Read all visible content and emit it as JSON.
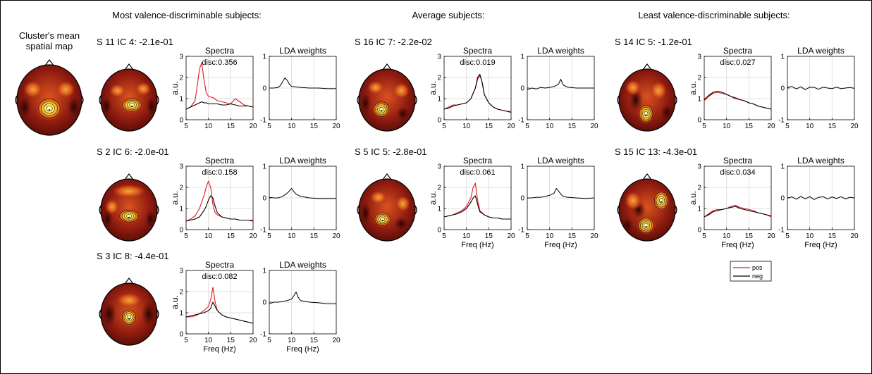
{
  "colors": {
    "pos": "#e8151c",
    "neg": "#000000",
    "grid": "#d9d9d9",
    "border": "#000000",
    "head_outline": "#000000"
  },
  "groups": [
    {
      "title": "Most valence-discriminable subjects:"
    },
    {
      "title": "Average subjects:"
    },
    {
      "title": "Least valence-discriminable subjects:"
    }
  ],
  "cluster": {
    "title_line1": "Cluster's mean",
    "title_line2": "spatial map"
  },
  "labels": {
    "spectra_title": "Spectra",
    "lda_title": "LDA weights",
    "spectra_ylabel": "a.u.",
    "xlabel": "Freq (Hz)",
    "spectra_yticks": [
      "0",
      "1",
      "2",
      "3"
    ],
    "lda_yticks": [
      "-1",
      "0",
      "1"
    ],
    "xticks": [
      "5",
      "10",
      "15",
      "20"
    ]
  },
  "legend": {
    "pos": "pos",
    "neg": "neg"
  },
  "panels": [
    {
      "id": "g0r0",
      "label": "S 11 IC 4: -2.1e-01",
      "disc": "disc:0.356",
      "map": "m1",
      "showXlabel": false
    },
    {
      "id": "g0r1",
      "label": "S 2 IC 6: -2.0e-01",
      "disc": "disc:0.158",
      "map": "m2",
      "showXlabel": false
    },
    {
      "id": "g0r2",
      "label": "S 3 IC 8: -4.4e-01",
      "disc": "disc:0.082",
      "map": "m3",
      "showXlabel": true
    },
    {
      "id": "g1r0",
      "label": "S 16 IC 7: -2.2e-02",
      "disc": "disc:0.019",
      "map": "m4",
      "showXlabel": false
    },
    {
      "id": "g1r1",
      "label": "S 5 IC 5: -2.8e-01",
      "disc": "disc:0.061",
      "map": "m5",
      "showXlabel": true
    },
    {
      "id": "g2r0",
      "label": "S 14 IC 5: -1.2e-01",
      "disc": "disc:0.027",
      "map": "m6",
      "showXlabel": false
    },
    {
      "id": "g2r1",
      "label": "S 15 IC 13: -4.3e-01",
      "disc": "disc:0.034",
      "map": "m7",
      "showXlabel": true
    }
  ],
  "chart_data": {
    "type": "line",
    "xlim": [
      5,
      20
    ],
    "spectra_ylim": [
      0,
      3
    ],
    "lda_ylim": [
      -1,
      1
    ],
    "grid": true,
    "legend_placement": "below last column",
    "series_names": [
      "pos",
      "neg"
    ],
    "spectra": {
      "g0r0": {
        "x": [
          5,
          6,
          7,
          7.5,
          8,
          8.5,
          9,
          9.5,
          10,
          11,
          12,
          13,
          14,
          15,
          16,
          17,
          18,
          19,
          20
        ],
        "pos": [
          0.5,
          0.6,
          0.9,
          1.6,
          2.4,
          2.7,
          1.9,
          1.3,
          1.1,
          1.05,
          0.9,
          0.85,
          0.8,
          0.75,
          1.0,
          0.85,
          0.7,
          0.65,
          0.6
        ],
        "neg": [
          0.5,
          0.6,
          0.7,
          0.75,
          0.8,
          0.85,
          0.8,
          0.8,
          0.75,
          0.75,
          0.75,
          0.7,
          0.7,
          0.75,
          0.7,
          0.65,
          0.65,
          0.65,
          0.6
        ]
      },
      "g0r1": {
        "x": [
          5,
          6,
          7,
          8,
          9,
          9.5,
          10,
          10.5,
          11,
          11.5,
          12,
          13,
          14,
          15,
          16,
          17,
          18,
          19,
          20
        ],
        "pos": [
          0.4,
          0.5,
          0.65,
          1.0,
          1.6,
          2.0,
          2.3,
          2.0,
          1.2,
          0.8,
          0.7,
          0.6,
          0.55,
          0.5,
          0.5,
          0.45,
          0.45,
          0.45,
          0.45
        ],
        "neg": [
          0.4,
          0.45,
          0.5,
          0.6,
          0.9,
          1.1,
          1.4,
          1.6,
          1.5,
          1.1,
          0.8,
          0.6,
          0.55,
          0.5,
          0.5,
          0.45,
          0.45,
          0.45,
          0.4
        ]
      },
      "g0r2": {
        "x": [
          5,
          6,
          7,
          8,
          9,
          10,
          10.5,
          11,
          11.5,
          12,
          13,
          14,
          15,
          16,
          17,
          18,
          19,
          20
        ],
        "pos": [
          0.8,
          0.8,
          0.85,
          0.95,
          1.1,
          1.3,
          1.6,
          2.2,
          1.5,
          1.1,
          0.9,
          0.8,
          0.75,
          0.7,
          0.65,
          0.6,
          0.55,
          0.5
        ],
        "neg": [
          0.8,
          0.85,
          0.9,
          0.95,
          1.0,
          1.1,
          1.2,
          1.5,
          1.3,
          1.1,
          0.9,
          0.8,
          0.75,
          0.7,
          0.65,
          0.6,
          0.55,
          0.5
        ]
      },
      "g1r0": {
        "x": [
          5,
          6,
          7,
          8,
          9,
          10,
          11,
          12,
          12.5,
          13,
          13.5,
          14,
          15,
          16,
          17,
          18,
          19,
          20
        ],
        "pos": [
          0.5,
          0.6,
          0.7,
          0.7,
          0.75,
          0.8,
          1.0,
          1.5,
          1.9,
          2.1,
          1.8,
          1.2,
          0.8,
          0.6,
          0.5,
          0.45,
          0.4,
          0.4
        ],
        "neg": [
          0.5,
          0.55,
          0.65,
          0.7,
          0.75,
          0.8,
          1.0,
          1.5,
          2.0,
          2.15,
          1.8,
          1.2,
          0.8,
          0.6,
          0.5,
          0.45,
          0.4,
          0.35
        ]
      },
      "g1r1": {
        "x": [
          5,
          6,
          7,
          8,
          9,
          10,
          11,
          11.5,
          12,
          12.5,
          13,
          14,
          15,
          16,
          17,
          18,
          19,
          20
        ],
        "pos": [
          0.6,
          0.65,
          0.7,
          0.8,
          0.9,
          1.1,
          1.5,
          2.0,
          2.2,
          1.4,
          0.9,
          0.7,
          0.6,
          0.55,
          0.55,
          0.5,
          0.5,
          0.5
        ],
        "neg": [
          0.6,
          0.65,
          0.7,
          0.75,
          0.85,
          1.0,
          1.3,
          1.5,
          1.6,
          1.2,
          0.85,
          0.7,
          0.6,
          0.55,
          0.55,
          0.5,
          0.5,
          0.5
        ]
      },
      "g2r0": {
        "x": [
          5,
          6,
          7,
          8,
          9,
          10,
          11,
          12,
          13,
          14,
          15,
          16,
          17,
          18,
          19,
          20
        ],
        "pos": [
          0.9,
          1.1,
          1.25,
          1.3,
          1.25,
          1.2,
          1.1,
          1.05,
          0.95,
          0.9,
          0.8,
          0.75,
          0.65,
          0.6,
          0.55,
          0.5
        ],
        "neg": [
          0.95,
          1.15,
          1.3,
          1.35,
          1.3,
          1.2,
          1.1,
          1.0,
          0.95,
          0.9,
          0.8,
          0.75,
          0.65,
          0.6,
          0.55,
          0.5
        ]
      },
      "g2r1": {
        "x": [
          5,
          6,
          7,
          8,
          9,
          10,
          11,
          12,
          13,
          14,
          15,
          16,
          17,
          18,
          19,
          20
        ],
        "pos": [
          0.6,
          0.75,
          0.9,
          0.95,
          0.95,
          1.0,
          1.1,
          1.15,
          1.05,
          1.0,
          0.95,
          0.9,
          0.8,
          0.75,
          0.7,
          0.6
        ],
        "neg": [
          0.6,
          0.7,
          0.85,
          0.9,
          0.95,
          1.0,
          1.05,
          1.1,
          1.0,
          0.95,
          0.9,
          0.85,
          0.8,
          0.75,
          0.7,
          0.65
        ]
      }
    },
    "lda": {
      "g0r0": {
        "x": [
          5,
          6,
          7,
          7.5,
          8,
          8.5,
          9,
          9.5,
          10,
          12,
          14,
          16,
          18,
          20
        ],
        "y": [
          0.0,
          0.0,
          0.02,
          0.08,
          0.2,
          0.32,
          0.25,
          0.12,
          0.05,
          0.02,
          0.0,
          0.0,
          -0.02,
          -0.02
        ]
      },
      "g0r1": {
        "x": [
          5,
          6,
          7,
          8,
          9,
          9.5,
          10,
          10.5,
          11,
          12,
          14,
          16,
          18,
          20
        ],
        "y": [
          0.02,
          0.0,
          0.0,
          0.05,
          0.15,
          0.22,
          0.3,
          0.2,
          0.12,
          0.05,
          0.0,
          -0.02,
          -0.02,
          -0.02
        ]
      },
      "g0r2": {
        "x": [
          5,
          6,
          7,
          8,
          9,
          10,
          10.5,
          11,
          11.5,
          12,
          14,
          16,
          18,
          20
        ],
        "y": [
          -0.05,
          0.0,
          0.0,
          0.02,
          0.05,
          0.1,
          0.2,
          0.32,
          0.15,
          0.05,
          0.0,
          -0.02,
          -0.05,
          -0.05
        ]
      },
      "g1r0": {
        "x": [
          5,
          6,
          7,
          8,
          9,
          10,
          11,
          12,
          12.5,
          13,
          14,
          16,
          18,
          20
        ],
        "y": [
          -0.05,
          0.0,
          -0.03,
          0.02,
          0.0,
          0.02,
          0.05,
          0.12,
          0.28,
          0.1,
          0.03,
          0.0,
          0.0,
          0.0
        ]
      },
      "g1r1": {
        "x": [
          5,
          6,
          7,
          8,
          9,
          10,
          11,
          11.5,
          12,
          12.5,
          13,
          14,
          16,
          18,
          20
        ],
        "y": [
          0.0,
          0.0,
          0.02,
          0.02,
          0.05,
          0.08,
          0.15,
          0.3,
          0.22,
          0.12,
          0.05,
          0.02,
          0.0,
          -0.02,
          0.0
        ]
      },
      "g2r0": {
        "x": [
          5,
          6,
          7,
          8,
          9,
          10,
          11,
          12,
          13,
          14,
          15,
          16,
          17,
          18,
          19,
          20
        ],
        "y": [
          0.02,
          0.05,
          -0.03,
          0.04,
          -0.05,
          0.03,
          0.02,
          -0.04,
          0.03,
          0.0,
          -0.02,
          0.03,
          -0.02,
          0.0,
          0.02,
          -0.01
        ]
      },
      "g2r1": {
        "x": [
          5,
          6,
          7,
          8,
          9,
          10,
          11,
          12,
          13,
          14,
          15,
          16,
          17,
          18,
          19,
          20
        ],
        "y": [
          0.0,
          0.03,
          -0.04,
          0.05,
          -0.03,
          0.04,
          -0.05,
          0.02,
          0.04,
          -0.03,
          0.03,
          -0.02,
          0.04,
          -0.03,
          0.02,
          0.0
        ]
      }
    }
  }
}
